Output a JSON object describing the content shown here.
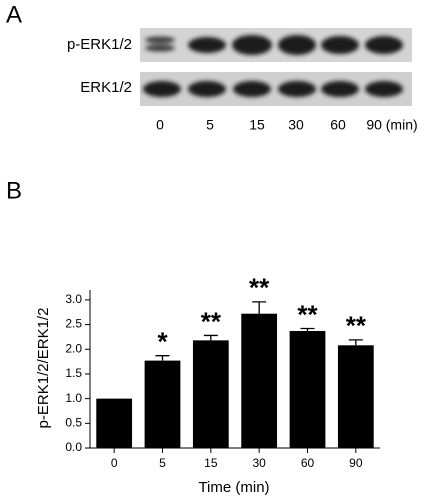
{
  "panel_a": {
    "label": "A",
    "rows": [
      "p-ERK1/2",
      "ERK1/2"
    ],
    "lanes": [
      "0",
      "5",
      "15",
      "30",
      "60",
      "90 (min)"
    ]
  },
  "chart_data": {
    "type": "bar",
    "panel_label": "B",
    "categories": [
      "0",
      "5",
      "15",
      "30",
      "60",
      "90"
    ],
    "values": [
      1.0,
      1.77,
      2.18,
      2.72,
      2.37,
      2.08
    ],
    "errors": [
      0,
      0.1,
      0.1,
      0.24,
      0.05,
      0.11
    ],
    "annotations": [
      null,
      "*",
      "**",
      "**",
      "**",
      "**"
    ],
    "color": "#000000",
    "xlabel": "Time (min)",
    "ylabel": "p-ERK1/2/ERK1/2",
    "ylim": [
      0,
      3.2
    ],
    "yticks": [
      {
        "value": 0,
        "label": "0.0"
      },
      {
        "value": 0.5,
        "label": "0.5"
      },
      {
        "value": 1,
        "label": "1.0"
      },
      {
        "value": 1.5,
        "label": "1.5"
      },
      {
        "value": 2,
        "label": "2.0"
      },
      {
        "value": 2.5,
        "label": "2.5"
      },
      {
        "value": 3,
        "label": "3.0"
      }
    ]
  }
}
